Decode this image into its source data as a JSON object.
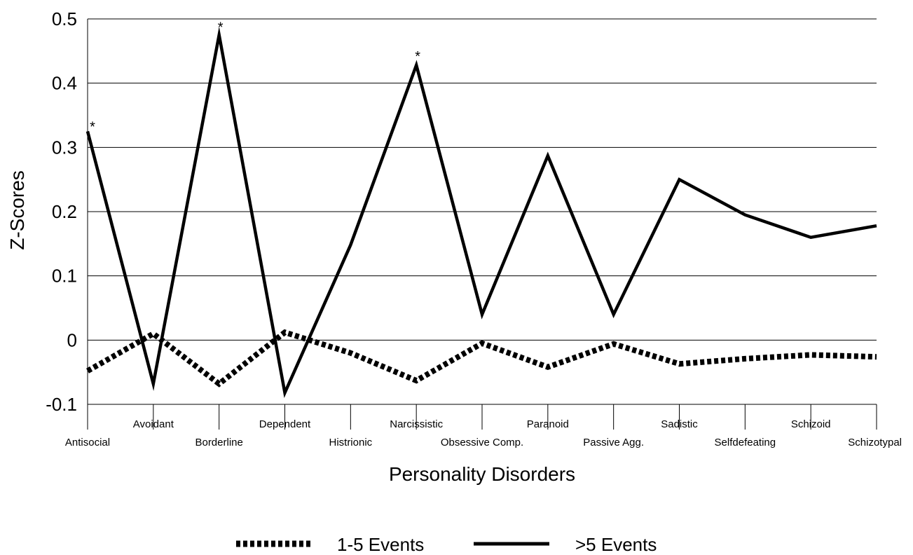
{
  "chart_data": {
    "type": "line",
    "title": "",
    "xlabel": "Personality Disorders",
    "ylabel": "Z-Scores",
    "ylim": [
      -0.1,
      0.5
    ],
    "yticks": [
      "-0.1",
      "0",
      "0.1",
      "0.2",
      "0.3",
      "0.4",
      "0.5"
    ],
    "grid": "horizontal",
    "legend_position": "bottom",
    "categories": [
      "Antisocial",
      "Avoidant",
      "Borderline",
      "Dependent",
      "Histrionic",
      "Narcissistic",
      "Obsessive Comp.",
      "Paranoid",
      "Passive Agg.",
      "Sadistic",
      "Selfdefeating",
      "Schizoid",
      "Schizotypal"
    ],
    "series": [
      {
        "name": "1-5 Events",
        "style": "dotted",
        "color": "#000000",
        "values": [
          -0.048,
          0.01,
          -0.068,
          0.012,
          -0.02,
          -0.063,
          -0.005,
          -0.042,
          -0.006,
          -0.037,
          -0.029,
          -0.023,
          -0.026
        ]
      },
      {
        "name": ">5 Events",
        "style": "solid",
        "color": "#000000",
        "values": [
          0.325,
          -0.068,
          0.475,
          -0.082,
          0.148,
          0.428,
          0.04,
          0.287,
          0.04,
          0.25,
          0.195,
          0.16,
          0.178
        ]
      }
    ],
    "annotations": [
      {
        "text": "*",
        "category": "Antisocial",
        "y": 0.34
      },
      {
        "text": "*",
        "category": "Borderline",
        "y": 0.495
      },
      {
        "text": "*",
        "category": "Narcissistic",
        "y": 0.45
      }
    ]
  }
}
